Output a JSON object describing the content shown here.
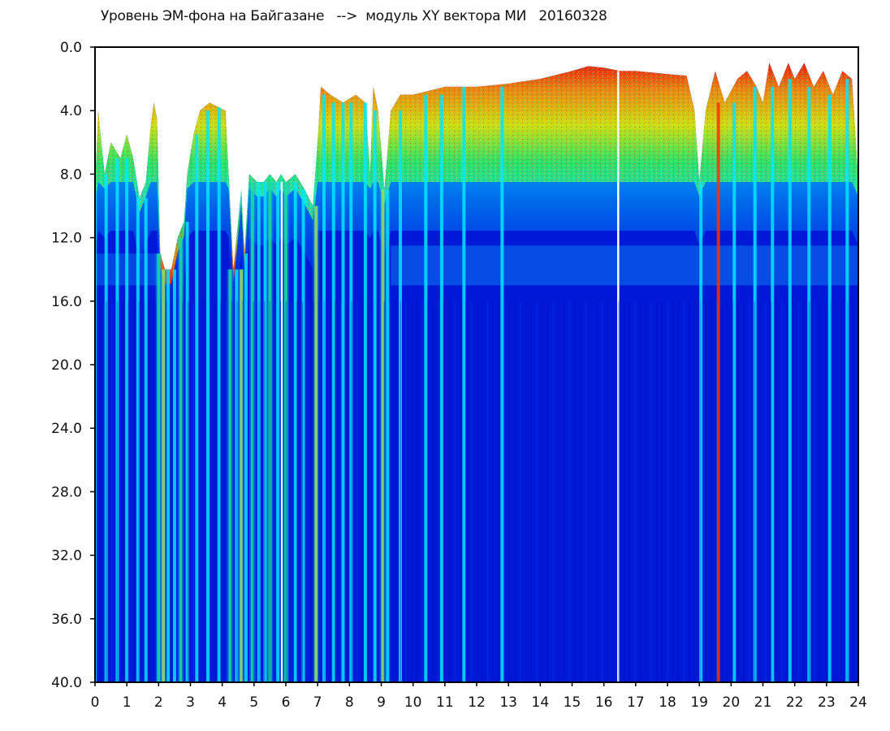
{
  "chart_data": {
    "type": "heatmap",
    "title": "Уровень ЭМ-фона на Байгазане   -->  модуль XY вектора МИ   20160328",
    "xlabel": "",
    "ylabel": "",
    "xlim": [
      0,
      24
    ],
    "ylim": [
      40.0,
      0.0
    ],
    "x_ticks": [
      "0",
      "1",
      "2",
      "3",
      "4",
      "5",
      "6",
      "7",
      "8",
      "9",
      "10",
      "11",
      "12",
      "13",
      "14",
      "15",
      "16",
      "17",
      "18",
      "19",
      "20",
      "21",
      "22",
      "23",
      "24"
    ],
    "y_ticks": [
      "0.0",
      "4.0",
      "8.0",
      "12.0",
      "16.0",
      "20.0",
      "24.0",
      "28.0",
      "32.0",
      "36.0",
      "40.0"
    ],
    "colormap": [
      "#0010e0",
      "#00a0ff",
      "#00e8e0",
      "#20f040",
      "#f0f000",
      "#ff2000"
    ],
    "background_color": "#0018d8",
    "top_boundary_profile": [
      [
        0.0,
        9.0
      ],
      [
        0.1,
        4.0
      ],
      [
        0.3,
        8.0
      ],
      [
        0.5,
        6.0
      ],
      [
        0.8,
        7.0
      ],
      [
        1.0,
        5.5
      ],
      [
        1.2,
        7.0
      ],
      [
        1.4,
        9.5
      ],
      [
        1.6,
        8.5
      ],
      [
        1.75,
        5.0
      ],
      [
        1.85,
        3.5
      ],
      [
        1.95,
        4.5
      ],
      [
        2.05,
        13.0
      ],
      [
        2.2,
        14.0
      ],
      [
        2.4,
        14.0
      ],
      [
        2.6,
        12.0
      ],
      [
        2.8,
        11.0
      ],
      [
        2.9,
        8.0
      ],
      [
        3.1,
        5.5
      ],
      [
        3.3,
        4.0
      ],
      [
        3.6,
        3.5
      ],
      [
        3.9,
        3.8
      ],
      [
        4.1,
        4.0
      ],
      [
        4.2,
        8.0
      ],
      [
        4.35,
        14.0
      ],
      [
        4.6,
        9.0
      ],
      [
        4.7,
        13.0
      ],
      [
        4.85,
        8.0
      ],
      [
        5.1,
        8.5
      ],
      [
        5.3,
        8.5
      ],
      [
        5.5,
        8.0
      ],
      [
        5.7,
        8.5
      ],
      [
        5.85,
        8.0
      ],
      [
        6.0,
        8.5
      ],
      [
        6.3,
        8.0
      ],
      [
        6.6,
        9.0
      ],
      [
        6.85,
        10.0
      ],
      [
        7.0,
        6.0
      ],
      [
        7.1,
        2.5
      ],
      [
        7.4,
        3.0
      ],
      [
        7.8,
        3.5
      ],
      [
        8.2,
        3.0
      ],
      [
        8.5,
        3.5
      ],
      [
        8.65,
        8.0
      ],
      [
        8.75,
        2.5
      ],
      [
        8.9,
        4.0
      ],
      [
        9.1,
        9.0
      ],
      [
        9.3,
        4.0
      ],
      [
        9.6,
        3.0
      ],
      [
        10.0,
        3.0
      ],
      [
        11.0,
        2.5
      ],
      [
        12.0,
        2.5
      ],
      [
        13.0,
        2.3
      ],
      [
        14.0,
        2.0
      ],
      [
        15.0,
        1.5
      ],
      [
        15.5,
        1.2
      ],
      [
        16.0,
        1.3
      ],
      [
        16.5,
        1.5
      ],
      [
        17.0,
        1.5
      ],
      [
        17.5,
        1.6
      ],
      [
        18.0,
        1.7
      ],
      [
        18.6,
        1.8
      ],
      [
        18.85,
        4.0
      ],
      [
        19.0,
        8.5
      ],
      [
        19.2,
        4.0
      ],
      [
        19.5,
        1.5
      ],
      [
        19.8,
        3.5
      ],
      [
        20.2,
        2.0
      ],
      [
        20.5,
        1.5
      ],
      [
        20.8,
        2.5
      ],
      [
        21.0,
        3.5
      ],
      [
        21.2,
        1.0
      ],
      [
        21.5,
        2.5
      ],
      [
        21.8,
        1.0
      ],
      [
        22.0,
        2.0
      ],
      [
        22.3,
        1.0
      ],
      [
        22.6,
        2.5
      ],
      [
        22.9,
        1.5
      ],
      [
        23.2,
        3.0
      ],
      [
        23.5,
        1.5
      ],
      [
        23.8,
        2.0
      ],
      [
        24.0,
        8.5
      ]
    ],
    "warm_band_bottom_depth": 8.5,
    "cyan_band_depth": [
      12.5,
      15.0
    ],
    "bright_vertical_stripes": [
      {
        "x": 0.0,
        "type": "cyan"
      },
      {
        "x": 0.35,
        "type": "cyan"
      },
      {
        "x": 0.7,
        "type": "cyan"
      },
      {
        "x": 1.0,
        "type": "cyan"
      },
      {
        "x": 1.35,
        "type": "cyan"
      },
      {
        "x": 1.6,
        "type": "cyan"
      },
      {
        "x": 2.0,
        "type": "green"
      },
      {
        "x": 2.15,
        "type": "yellow"
      },
      {
        "x": 2.3,
        "type": "cyan"
      },
      {
        "x": 2.5,
        "type": "cyan"
      },
      {
        "x": 2.7,
        "type": "green"
      },
      {
        "x": 2.9,
        "type": "cyan"
      },
      {
        "x": 3.2,
        "type": "cyan"
      },
      {
        "x": 3.55,
        "type": "cyan"
      },
      {
        "x": 3.9,
        "type": "cyan"
      },
      {
        "x": 4.25,
        "type": "green"
      },
      {
        "x": 4.45,
        "type": "cyan"
      },
      {
        "x": 4.6,
        "type": "yellow"
      },
      {
        "x": 4.75,
        "type": "cyan"
      },
      {
        "x": 4.95,
        "type": "green"
      },
      {
        "x": 5.15,
        "type": "cyan"
      },
      {
        "x": 5.35,
        "type": "cyan"
      },
      {
        "x": 5.5,
        "type": "green"
      },
      {
        "x": 5.75,
        "type": "cyan"
      },
      {
        "x": 5.87,
        "type": "white"
      },
      {
        "x": 6.0,
        "type": "green"
      },
      {
        "x": 6.3,
        "type": "cyan"
      },
      {
        "x": 6.55,
        "type": "cyan"
      },
      {
        "x": 6.95,
        "type": "yellow"
      },
      {
        "x": 7.2,
        "type": "cyan"
      },
      {
        "x": 7.5,
        "type": "cyan"
      },
      {
        "x": 7.8,
        "type": "cyan"
      },
      {
        "x": 8.05,
        "type": "cyan"
      },
      {
        "x": 8.5,
        "type": "cyan"
      },
      {
        "x": 8.8,
        "type": "cyan"
      },
      {
        "x": 9.05,
        "type": "yellow"
      },
      {
        "x": 9.2,
        "type": "cyan"
      },
      {
        "x": 9.6,
        "type": "cyan"
      },
      {
        "x": 10.4,
        "type": "cyan"
      },
      {
        "x": 10.9,
        "type": "cyan"
      },
      {
        "x": 11.6,
        "type": "cyan"
      },
      {
        "x": 12.8,
        "type": "cyan"
      },
      {
        "x": 16.45,
        "type": "white"
      },
      {
        "x": 19.05,
        "type": "cyan"
      },
      {
        "x": 19.6,
        "type": "red"
      },
      {
        "x": 20.1,
        "type": "cyan"
      },
      {
        "x": 20.75,
        "type": "cyan"
      },
      {
        "x": 21.3,
        "type": "cyan"
      },
      {
        "x": 21.85,
        "type": "cyan"
      },
      {
        "x": 22.45,
        "type": "cyan"
      },
      {
        "x": 23.1,
        "type": "cyan"
      },
      {
        "x": 23.65,
        "type": "cyan"
      }
    ]
  }
}
